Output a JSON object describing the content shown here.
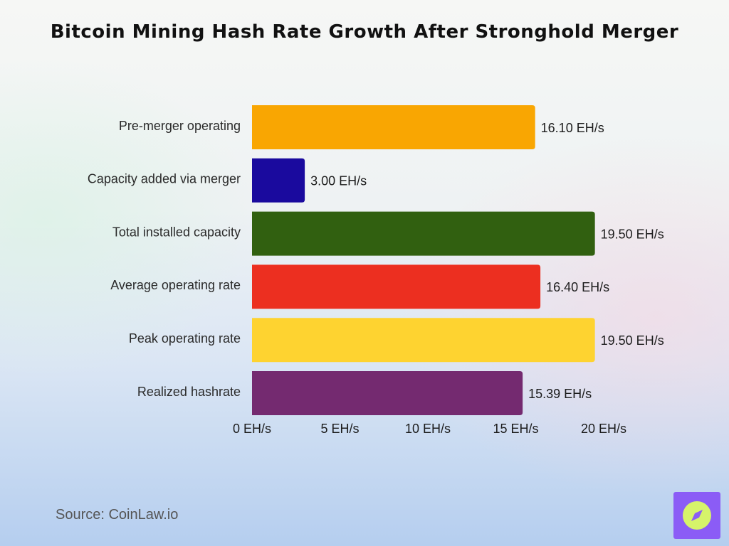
{
  "chart_data": {
    "type": "bar",
    "orientation": "horizontal",
    "title": "Bitcoin Mining Hash Rate Growth After Stronghold Merger",
    "categories": [
      "Pre-merger operating",
      "Capacity added via merger",
      "Total installed capacity",
      "Average operating rate",
      "Peak operating rate",
      "Realized hashrate"
    ],
    "values": [
      16.1,
      3.0,
      19.5,
      16.4,
      19.5,
      15.39
    ],
    "value_labels": [
      "16.10 EH/s",
      "3.00 EH/s",
      "19.50 EH/s",
      "16.40 EH/s",
      "19.50 EH/s",
      "15.39 EH/s"
    ],
    "colors": [
      "#f9a602",
      "#1a0a9e",
      "#316010",
      "#ec2f20",
      "#fed330",
      "#742a70"
    ],
    "xlim": [
      0,
      20
    ],
    "xticks": [
      0,
      5,
      10,
      15,
      20
    ],
    "xtick_labels": [
      "0 EH/s",
      "5 EH/s",
      "10 EH/s",
      "15 EH/s",
      "20 EH/s"
    ],
    "unit": "EH/s",
    "xlabel": "",
    "ylabel": "",
    "grid": false
  },
  "source": "Source: CoinLaw.io",
  "logo": {
    "icon": "compass-icon",
    "bg_color": "#8b5cf6",
    "fg_color": "#d6f36a"
  }
}
